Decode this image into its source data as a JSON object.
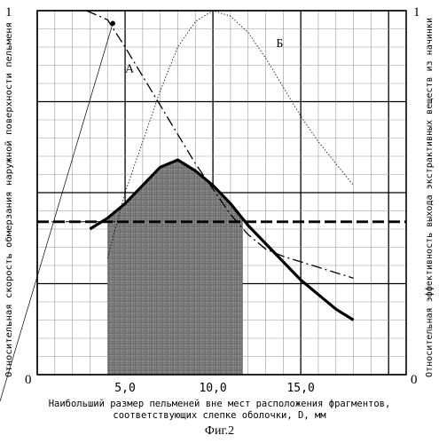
{
  "chart_data": {
    "type": "line",
    "caption": "Фиг.2",
    "xlabel_line1": "Наибольший размер пельменей вне мест расположения фрагментов,",
    "xlabel_line2": "соответствующих слепке оболочки, D, мм",
    "ylabel_left": "Относительная скорость обмерзания наружной поверхности пельменя",
    "ylabel_right": "Относительная эффективность выхода экстрактивных веществ из начинки",
    "left_top_tick": "1",
    "left_bottom_tick": "0",
    "right_top_tick": "1",
    "right_bottom_tick": "0",
    "x_ticks": [
      "5,0",
      "10,0",
      "15,0"
    ],
    "xlim": [
      0,
      21
    ],
    "ylim": [
      0,
      1
    ],
    "grid": true,
    "series": [
      {
        "name": "А",
        "style": "dash-dot",
        "x": [
          2.8,
          4.0,
          5.0,
          6.0,
          7.0,
          8.0,
          9.0,
          10.0,
          11.0,
          12.0,
          13.0,
          14.0,
          15.0,
          16.0,
          17.0,
          18.0
        ],
        "y": [
          1.0,
          0.975,
          0.9,
          0.82,
          0.74,
          0.66,
          0.58,
          0.51,
          0.44,
          0.385,
          0.345,
          0.325,
          0.31,
          0.295,
          0.28,
          0.265
        ]
      },
      {
        "name": "Б",
        "style": "dotted",
        "x": [
          4.0,
          5.0,
          6.0,
          7.0,
          8.0,
          9.0,
          10.0,
          11.0,
          12.0,
          13.0,
          14.0,
          15.0,
          16.0,
          17.0,
          18.0
        ],
        "y": [
          0.32,
          0.5,
          0.64,
          0.78,
          0.9,
          0.97,
          1.0,
          0.985,
          0.94,
          0.87,
          0.79,
          0.71,
          0.64,
          0.58,
          0.52
        ]
      },
      {
        "style": "bold-solid",
        "x": [
          3.0,
          4.0,
          5.0,
          6.0,
          7.0,
          8.0,
          9.0,
          10.0,
          11.0,
          12.0,
          13.0,
          14.0,
          15.0,
          16.0,
          17.0,
          18.0
        ],
        "y": [
          0.4,
          0.43,
          0.47,
          0.52,
          0.57,
          0.59,
          0.56,
          0.52,
          0.47,
          0.41,
          0.36,
          0.31,
          0.26,
          0.22,
          0.18,
          0.15
        ]
      },
      {
        "style": "bold-dashed",
        "x": [
          0.0,
          21.0
        ],
        "y": [
          0.42,
          0.42
        ]
      },
      {
        "style": "thin-dash-dot-horizontal",
        "x": [
          0.0,
          5.0
        ],
        "y": [
          0.42,
          0.42
        ]
      }
    ],
    "shaded_region": {
      "x_from": 4.0,
      "x_to": 11.7
    },
    "label_A_point": {
      "x": 5.0,
      "y": 0.83
    },
    "label_B_point": {
      "x": 13.6,
      "y": 0.9
    },
    "marker_point": {
      "x": 4.3,
      "y": 0.965
    }
  }
}
